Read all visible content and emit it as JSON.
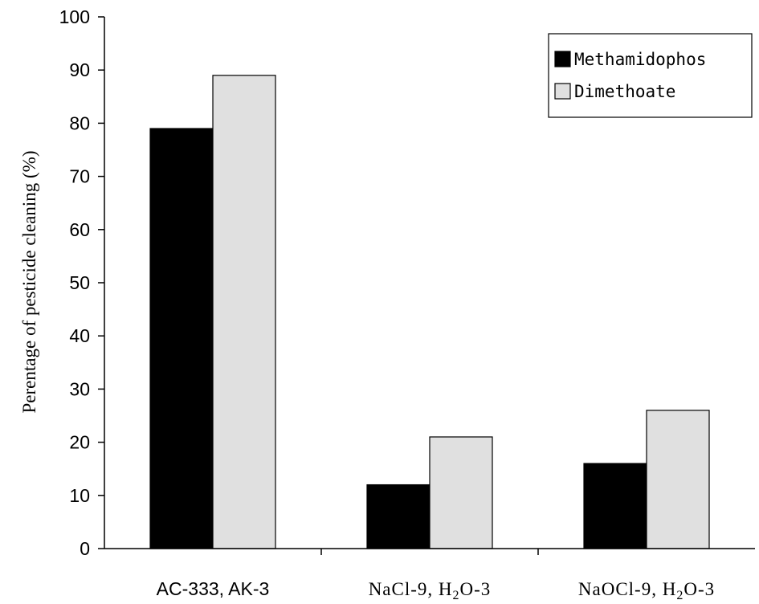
{
  "chart_data": {
    "type": "bar",
    "title": "",
    "ylabel": "Perentage of pesticide cleaning (%)",
    "xlabel": "",
    "ylim": [
      0,
      100
    ],
    "yticks": [
      0,
      10,
      20,
      30,
      40,
      50,
      60,
      70,
      80,
      90,
      100
    ],
    "categories": [
      "AC-333, AK-3",
      "NaCl-9, H2O-3",
      "NaOCl-9, H2O-3"
    ],
    "category_display": [
      {
        "pre": "AC-333, AK-3",
        "sub": "",
        "post": ""
      },
      {
        "pre": "NaCl-9, H",
        "sub": "2",
        "post": "O-3"
      },
      {
        "pre": "NaOCl-9, H",
        "sub": "2",
        "post": "O-3"
      }
    ],
    "series": [
      {
        "name": "Methamidophos",
        "color": "#000000",
        "values": [
          79,
          12,
          16
        ]
      },
      {
        "name": "Dimethoate",
        "color": "#e0e0e0",
        "values": [
          89,
          21,
          26
        ]
      }
    ],
    "legend_position": "top-right",
    "grid": false
  }
}
